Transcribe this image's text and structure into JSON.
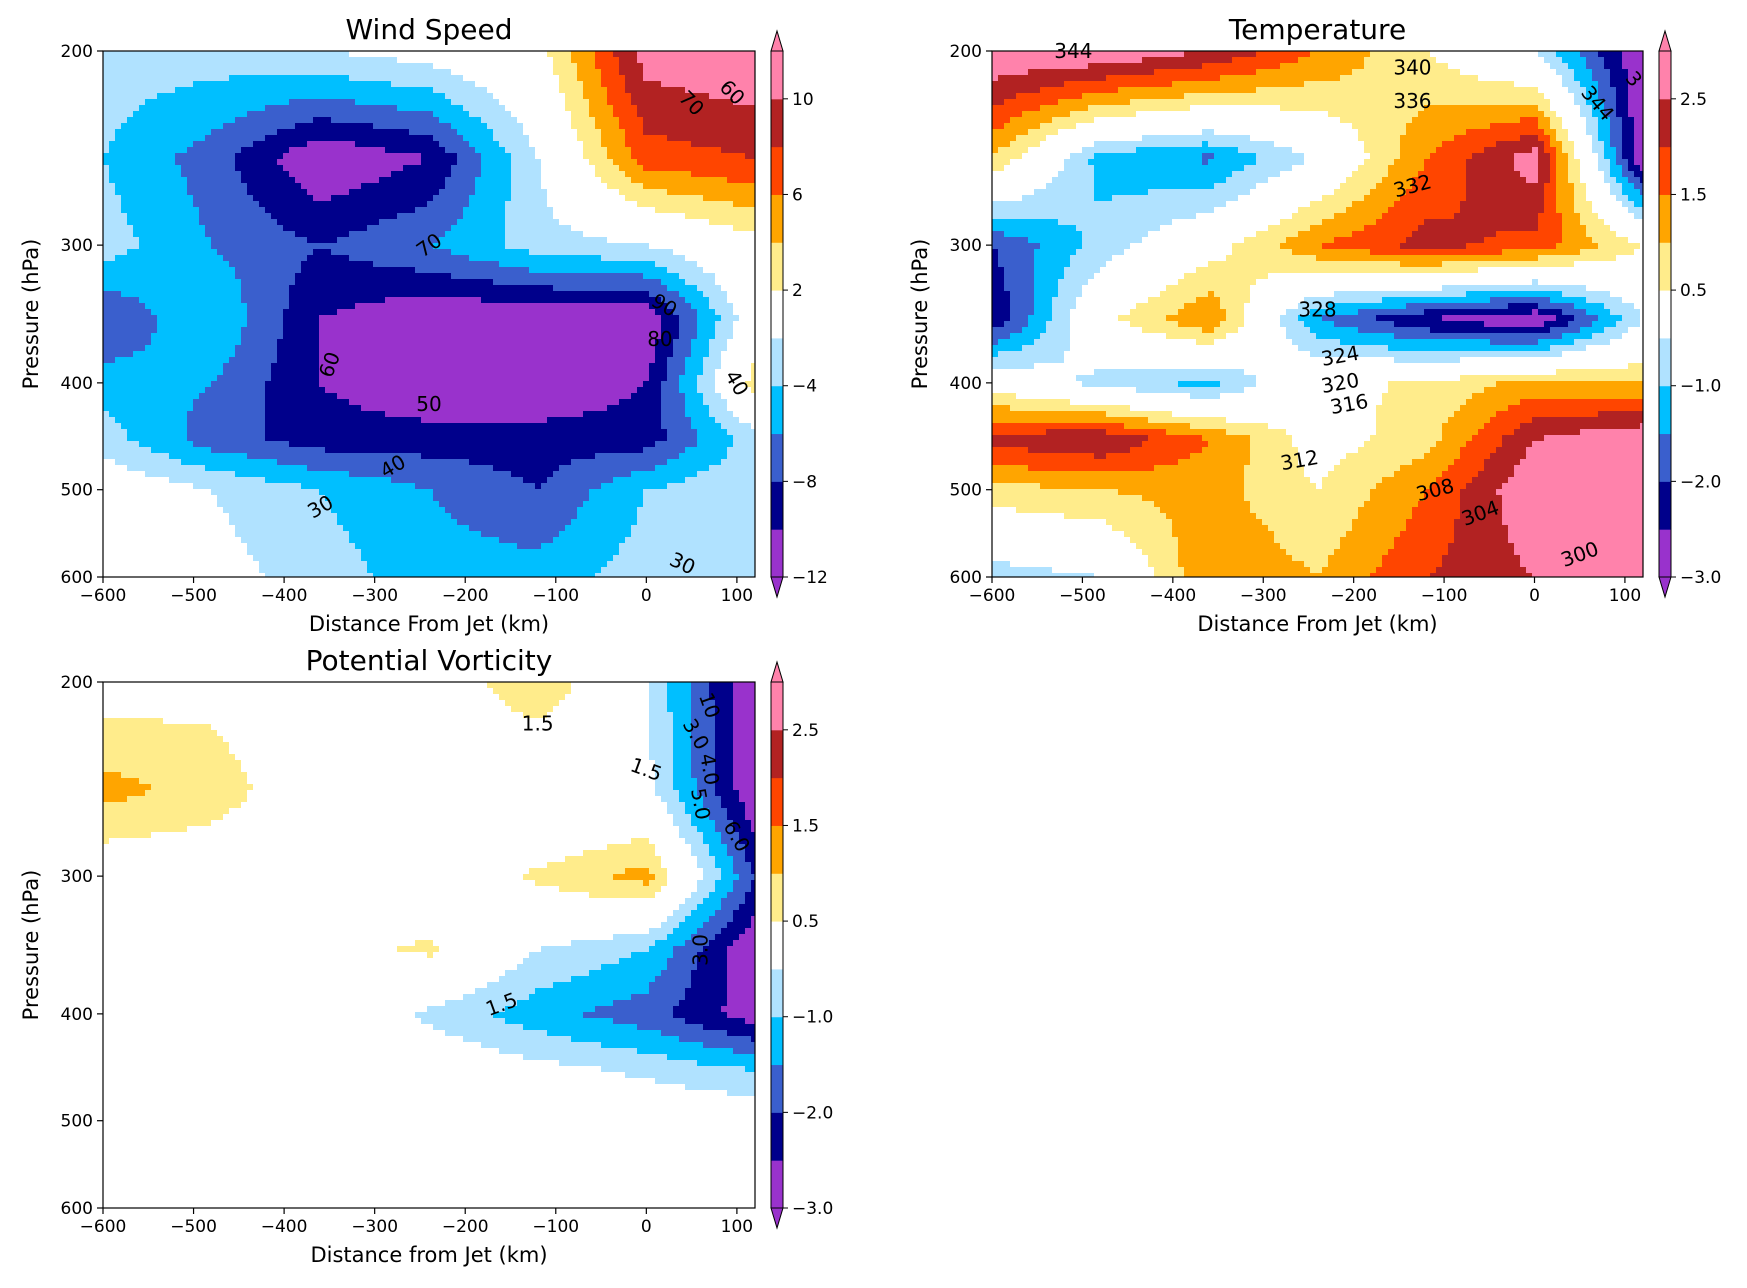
{
  "figure": {
    "colors": {
      "axis": "#000000",
      "contour_line": "#000000"
    }
  },
  "colormap": {
    "fill_colors": [
      "#9932CC",
      "#00008B",
      "#3A5FCD",
      "#00BFFF",
      "#B0E2FF",
      "#FFFFFF",
      "#FFEC8B",
      "#FFA500",
      "#FF4500",
      "#B22222",
      "#FF82AB"
    ],
    "under_color": "#9932CC",
    "over_color": "#FF82AB"
  },
  "chart_data": [
    {
      "type": "heatmap",
      "title": "Wind Speed",
      "xlabel": "Distance From Jet (km)",
      "ylabel": "Pressure (hPa)",
      "xlim": [
        -600,
        120
      ],
      "ylim": [
        600,
        200
      ],
      "y_scale": "log",
      "xticks": [
        -600,
        -500,
        -400,
        -300,
        -200,
        -100,
        0,
        100
      ],
      "xtick_labels": [
        "−600",
        "−500",
        "−400",
        "−300",
        "−200",
        "−100",
        "0",
        "100"
      ],
      "yticks": [
        200,
        300,
        400,
        500,
        600
      ],
      "ytick_labels": [
        "200",
        "300",
        "400",
        "500",
        "600"
      ],
      "filled_levels": [
        -12,
        -10,
        -8,
        -6,
        -4,
        -2,
        2,
        4,
        6,
        8,
        10,
        12
      ],
      "colorbar_ticks": [
        -12,
        -8,
        -4,
        2,
        6,
        10
      ],
      "colorbar_tick_labels": [
        "−12",
        "−8",
        "−4",
        "2",
        "6",
        "10"
      ],
      "colorbar_extend": "both",
      "x": [
        -600,
        -480,
        -360,
        -240,
        -120,
        0,
        120
      ],
      "y": [
        200,
        250,
        300,
        350,
        400,
        450,
        500,
        600
      ],
      "values": [
        [
          -3,
          -3,
          -2,
          -1,
          1,
          11,
          12
        ],
        [
          -4,
          -7,
          -12,
          -10,
          -2,
          7,
          8
        ],
        [
          -3,
          -6,
          -8,
          -6,
          -3,
          -2,
          1
        ],
        [
          -8,
          -4,
          -10,
          -12,
          -12,
          -12,
          0
        ],
        [
          -5,
          -6,
          -10,
          -12,
          -12,
          -10,
          3
        ],
        [
          -3,
          -7,
          -9,
          -9,
          -9,
          -9,
          -3
        ],
        [
          0,
          -2,
          -4,
          -6,
          -8,
          -4,
          -2
        ],
        [
          -1,
          -1,
          -3,
          -5,
          -5,
          -3,
          -3
        ]
      ],
      "contour_labels": [
        {
          "text": "70",
          "x": -240,
          "y": 300,
          "angle": 35
        },
        {
          "text": "60",
          "x": -350,
          "y": 385,
          "angle": 70
        },
        {
          "text": "50",
          "x": -240,
          "y": 418,
          "angle": 0
        },
        {
          "text": "40",
          "x": -280,
          "y": 476,
          "angle": 30
        },
        {
          "text": "30",
          "x": -360,
          "y": 518,
          "angle": 30
        },
        {
          "text": "30",
          "x": 40,
          "y": 583,
          "angle": -25
        },
        {
          "text": "90",
          "x": 20,
          "y": 340,
          "angle": -30
        },
        {
          "text": "80",
          "x": 15,
          "y": 365,
          "angle": 0
        },
        {
          "text": "70",
          "x": 50,
          "y": 223,
          "angle": -45
        },
        {
          "text": "60",
          "x": 95,
          "y": 218,
          "angle": -45
        },
        {
          "text": "40",
          "x": 100,
          "y": 400,
          "angle": -60
        }
      ]
    },
    {
      "type": "heatmap",
      "title": "Temperature",
      "xlabel": "Distance From Jet (km)",
      "ylabel": "Pressure (hPa)",
      "xlim": [
        -600,
        120
      ],
      "ylim": [
        600,
        200
      ],
      "y_scale": "log",
      "xticks": [
        -600,
        -500,
        -400,
        -300,
        -200,
        -100,
        0,
        100
      ],
      "xtick_labels": [
        "−600",
        "−500",
        "−400",
        "−300",
        "−200",
        "−100",
        "0",
        "100"
      ],
      "yticks": [
        200,
        300,
        400,
        500,
        600
      ],
      "ytick_labels": [
        "200",
        "300",
        "400",
        "500",
        "600"
      ],
      "filled_levels": [
        -3.0,
        -2.5,
        -2.0,
        -1.5,
        -1.0,
        -0.5,
        0.5,
        1.0,
        1.5,
        2.0,
        2.5,
        3.0
      ],
      "colorbar_ticks": [
        -3.0,
        -2.0,
        -1.0,
        0.5,
        1.5,
        2.5
      ],
      "colorbar_tick_labels": [
        "−3.0",
        "−2.0",
        "−1.0",
        "0.5",
        "1.5",
        "2.5"
      ],
      "colorbar_extend": "both",
      "x": [
        -600,
        -480,
        -360,
        -240,
        -120,
        0,
        120
      ],
      "y": [
        200,
        250,
        300,
        350,
        400,
        450,
        500,
        600
      ],
      "values": [
        [
          3.0,
          3.0,
          2.5,
          1.5,
          0.5,
          -0.5,
          -3.0
        ],
        [
          1.0,
          -1.2,
          -1.6,
          -0.4,
          1.5,
          2.8,
          -3.0
        ],
        [
          -2.0,
          -0.8,
          0.2,
          1.5,
          2.2,
          1.8,
          0.5
        ],
        [
          -2.5,
          0.3,
          1.5,
          -1.5,
          -2.5,
          -3.0,
          -0.5
        ],
        [
          0.2,
          -0.7,
          -1.2,
          0.3,
          0.6,
          1.2,
          1.0
        ],
        [
          2.2,
          2.5,
          1.5,
          0.2,
          0.8,
          2.5,
          3.0
        ],
        [
          0.8,
          1.0,
          1.2,
          0.5,
          1.5,
          3.0,
          3.0
        ],
        [
          -0.8,
          -0.5,
          1.5,
          1.0,
          2.0,
          2.5,
          2.5
        ]
      ],
      "contour_labels": [
        {
          "text": "344",
          "x": -510,
          "y": 200,
          "angle": 0
        },
        {
          "text": "340",
          "x": -135,
          "y": 207,
          "angle": 0
        },
        {
          "text": "336",
          "x": -135,
          "y": 222,
          "angle": 0
        },
        {
          "text": "332",
          "x": -135,
          "y": 265,
          "angle": 15
        },
        {
          "text": "328",
          "x": -240,
          "y": 343,
          "angle": 0
        },
        {
          "text": "324",
          "x": -215,
          "y": 378,
          "angle": 10
        },
        {
          "text": "320",
          "x": -215,
          "y": 400,
          "angle": 10
        },
        {
          "text": "316",
          "x": -205,
          "y": 418,
          "angle": 10
        },
        {
          "text": "312",
          "x": -260,
          "y": 470,
          "angle": 10
        },
        {
          "text": "308",
          "x": -110,
          "y": 500,
          "angle": 15
        },
        {
          "text": "304",
          "x": -60,
          "y": 525,
          "angle": 20
        },
        {
          "text": "300",
          "x": 50,
          "y": 572,
          "angle": 20
        },
        {
          "text": "344",
          "x": 70,
          "y": 223,
          "angle": -50
        },
        {
          "text": "3",
          "x": 110,
          "y": 212,
          "angle": -50
        }
      ]
    },
    {
      "type": "heatmap",
      "title": "Potential Vorticity",
      "xlabel": "Distance from Jet (km)",
      "ylabel": "Pressure (hPa)",
      "xlim": [
        -600,
        120
      ],
      "ylim": [
        600,
        200
      ],
      "y_scale": "log",
      "xticks": [
        -600,
        -500,
        -400,
        -300,
        -200,
        -100,
        0,
        100
      ],
      "xtick_labels": [
        "−600",
        "−500",
        "−400",
        "−300",
        "−200",
        "−100",
        "0",
        "100"
      ],
      "yticks": [
        200,
        300,
        400,
        500,
        600
      ],
      "ytick_labels": [
        "200",
        "300",
        "400",
        "500",
        "600"
      ],
      "filled_levels": [
        -3.0,
        -2.5,
        -2.0,
        -1.5,
        -1.0,
        -0.5,
        0.5,
        1.0,
        1.5,
        2.0,
        2.5,
        3.0
      ],
      "colorbar_ticks": [
        -3.0,
        -2.0,
        -1.0,
        0.5,
        1.5,
        2.5
      ],
      "colorbar_tick_labels": [
        "−3.0",
        "−2.0",
        "−1.0",
        "0.5",
        "1.5",
        "2.5"
      ],
      "colorbar_extend": "both",
      "x": [
        -600,
        -480,
        -360,
        -240,
        -120,
        0,
        120
      ],
      "y": [
        200,
        250,
        300,
        350,
        400,
        450,
        500,
        600
      ],
      "values": [
        [
          0.2,
          0.3,
          0.0,
          0.0,
          1.0,
          -0.5,
          -3.0
        ],
        [
          1.2,
          0.8,
          0.0,
          0.0,
          -0.5,
          -0.3,
          -3.0
        ],
        [
          0.0,
          0.0,
          0.0,
          0.0,
          0.6,
          1.2,
          -2.0
        ],
        [
          0.0,
          0.0,
          0.3,
          0.6,
          -0.5,
          -1.0,
          -3.0
        ],
        [
          0.0,
          0.0,
          0.0,
          -0.6,
          -1.3,
          -1.8,
          -2.8
        ],
        [
          0.0,
          0.0,
          0.0,
          0.0,
          -0.3,
          -0.6,
          -1.0
        ],
        [
          0.0,
          0.0,
          0.0,
          0.0,
          0.0,
          0.0,
          0.0
        ],
        [
          0.0,
          0.0,
          0.0,
          0.0,
          0.0,
          0.0,
          -0.5
        ]
      ],
      "contour_labels": [
        {
          "text": "1.5",
          "x": -120,
          "y": 218,
          "angle": 0
        },
        {
          "text": "1.5",
          "x": 0,
          "y": 240,
          "angle": -20
        },
        {
          "text": "3.0",
          "x": 55,
          "y": 223,
          "angle": -60
        },
        {
          "text": "4.0",
          "x": 70,
          "y": 240,
          "angle": -80
        },
        {
          "text": "5.0",
          "x": 60,
          "y": 258,
          "angle": -80
        },
        {
          "text": "6.0",
          "x": 100,
          "y": 276,
          "angle": -60
        },
        {
          "text": "10",
          "x": 70,
          "y": 210,
          "angle": -70
        },
        {
          "text": "3.0",
          "x": 60,
          "y": 350,
          "angle": 90
        },
        {
          "text": "1.5",
          "x": -160,
          "y": 392,
          "angle": 20
        }
      ]
    }
  ]
}
